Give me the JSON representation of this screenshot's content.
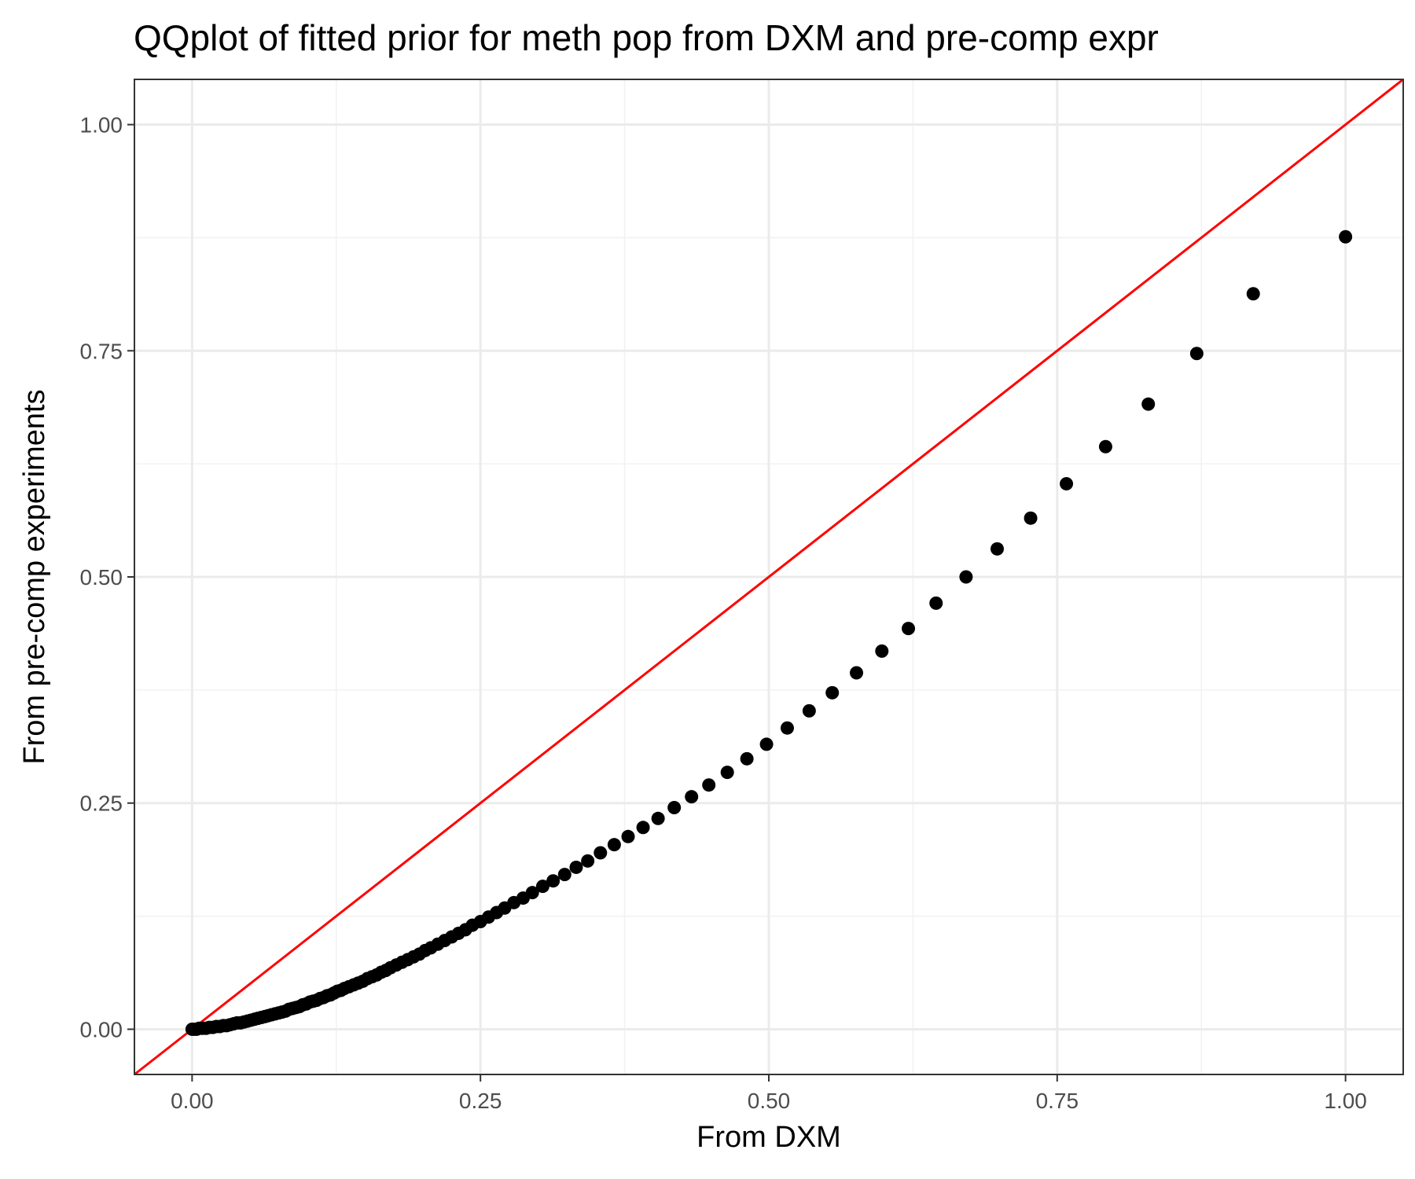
{
  "chart_data": {
    "type": "scatter",
    "title": "QQplot of fitted prior for meth pop from DXM and pre-comp expr",
    "xlabel": "From DXM",
    "ylabel": "From pre-comp experiments",
    "xlim": [
      -0.05,
      1.05
    ],
    "ylim": [
      -0.05,
      1.05
    ],
    "x_ticks": [
      "0.00",
      "0.25",
      "0.50",
      "0.75",
      "1.00"
    ],
    "y_ticks": [
      "0.00",
      "0.25",
      "0.50",
      "0.75",
      "1.00"
    ],
    "x_tick_values": [
      0,
      0.25,
      0.5,
      0.75,
      1.0
    ],
    "y_tick_values": [
      0,
      0.25,
      0.5,
      0.75,
      1.0
    ],
    "minor_grid": [
      0.125,
      0.375,
      0.625,
      0.875
    ],
    "grid": true,
    "reference_line": {
      "slope": 1,
      "intercept": 0,
      "color": "#ff0000"
    },
    "point_color": "#000000",
    "points": [
      [
        0.0,
        0.0
      ],
      [
        0.002,
        0.0
      ],
      [
        0.004,
        0.0
      ],
      [
        0.006,
        0.001
      ],
      [
        0.009,
        0.001
      ],
      [
        0.012,
        0.001
      ],
      [
        0.015,
        0.002
      ],
      [
        0.018,
        0.002
      ],
      [
        0.021,
        0.003
      ],
      [
        0.024,
        0.003
      ],
      [
        0.027,
        0.004
      ],
      [
        0.03,
        0.004
      ],
      [
        0.033,
        0.005
      ],
      [
        0.036,
        0.006
      ],
      [
        0.039,
        0.007
      ],
      [
        0.042,
        0.007
      ],
      [
        0.045,
        0.008
      ],
      [
        0.048,
        0.009
      ],
      [
        0.051,
        0.01
      ],
      [
        0.054,
        0.011
      ],
      [
        0.057,
        0.012
      ],
      [
        0.06,
        0.013
      ],
      [
        0.063,
        0.014
      ],
      [
        0.066,
        0.015
      ],
      [
        0.069,
        0.016
      ],
      [
        0.072,
        0.017
      ],
      [
        0.075,
        0.018
      ],
      [
        0.078,
        0.019
      ],
      [
        0.081,
        0.02
      ],
      [
        0.084,
        0.022
      ],
      [
        0.087,
        0.023
      ],
      [
        0.09,
        0.024
      ],
      [
        0.093,
        0.025
      ],
      [
        0.096,
        0.027
      ],
      [
        0.099,
        0.028
      ],
      [
        0.102,
        0.03
      ],
      [
        0.105,
        0.031
      ],
      [
        0.108,
        0.032
      ],
      [
        0.111,
        0.034
      ],
      [
        0.114,
        0.035
      ],
      [
        0.117,
        0.037
      ],
      [
        0.12,
        0.038
      ],
      [
        0.123,
        0.04
      ],
      [
        0.126,
        0.042
      ],
      [
        0.129,
        0.043
      ],
      [
        0.132,
        0.045
      ],
      [
        0.136,
        0.047
      ],
      [
        0.14,
        0.049
      ],
      [
        0.144,
        0.051
      ],
      [
        0.148,
        0.053
      ],
      [
        0.152,
        0.056
      ],
      [
        0.156,
        0.058
      ],
      [
        0.16,
        0.06
      ],
      [
        0.164,
        0.063
      ],
      [
        0.168,
        0.065
      ],
      [
        0.172,
        0.068
      ],
      [
        0.177,
        0.071
      ],
      [
        0.182,
        0.074
      ],
      [
        0.187,
        0.077
      ],
      [
        0.192,
        0.08
      ],
      [
        0.197,
        0.083
      ],
      [
        0.202,
        0.087
      ],
      [
        0.207,
        0.09
      ],
      [
        0.213,
        0.094
      ],
      [
        0.219,
        0.098
      ],
      [
        0.225,
        0.102
      ],
      [
        0.231,
        0.106
      ],
      [
        0.237,
        0.11
      ],
      [
        0.243,
        0.115
      ],
      [
        0.25,
        0.119
      ],
      [
        0.257,
        0.124
      ],
      [
        0.264,
        0.129
      ],
      [
        0.271,
        0.134
      ],
      [
        0.279,
        0.14
      ],
      [
        0.287,
        0.145
      ],
      [
        0.295,
        0.151
      ],
      [
        0.304,
        0.158
      ],
      [
        0.313,
        0.164
      ],
      [
        0.323,
        0.171
      ],
      [
        0.333,
        0.179
      ],
      [
        0.343,
        0.186
      ],
      [
        0.354,
        0.195
      ],
      [
        0.366,
        0.204
      ],
      [
        0.378,
        0.213
      ],
      [
        0.391,
        0.223
      ],
      [
        0.404,
        0.233
      ],
      [
        0.418,
        0.245
      ],
      [
        0.433,
        0.257
      ],
      [
        0.448,
        0.27
      ],
      [
        0.464,
        0.284
      ],
      [
        0.481,
        0.299
      ],
      [
        0.498,
        0.315
      ],
      [
        0.516,
        0.333
      ],
      [
        0.535,
        0.352
      ],
      [
        0.555,
        0.372
      ],
      [
        0.576,
        0.394
      ],
      [
        0.598,
        0.418
      ],
      [
        0.621,
        0.443
      ],
      [
        0.645,
        0.471
      ],
      [
        0.671,
        0.5
      ],
      [
        0.698,
        0.531
      ],
      [
        0.727,
        0.565
      ],
      [
        0.758,
        0.603
      ],
      [
        0.792,
        0.644
      ],
      [
        0.829,
        0.691
      ],
      [
        0.871,
        0.747
      ],
      [
        0.92,
        0.813
      ],
      [
        1.0,
        0.876
      ]
    ]
  }
}
